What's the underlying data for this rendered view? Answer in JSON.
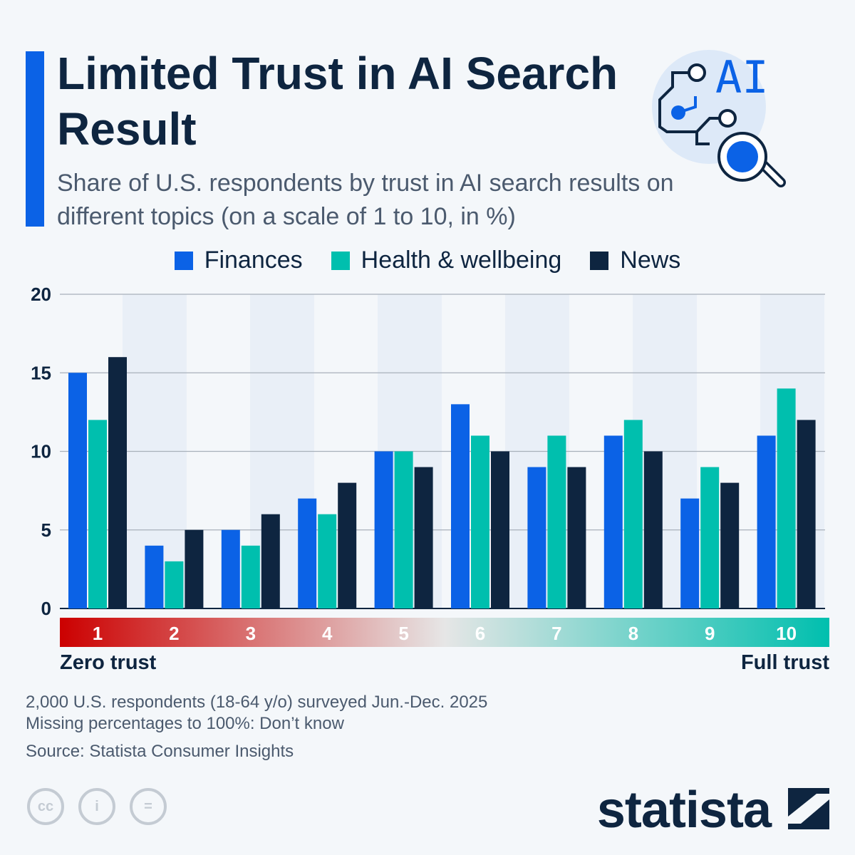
{
  "header": {
    "title": "Limited Trust in AI Search Result",
    "subtitle": "Share of U.S. respondents by trust in AI search results on different topics (on a scale of 1 to 10, in %)"
  },
  "colors": {
    "accent": "#0b62e6",
    "finances": "#0b62e6",
    "health": "#00bfae",
    "news": "#0e2540"
  },
  "chart_data": {
    "type": "bar",
    "categories": [
      "1",
      "2",
      "3",
      "4",
      "5",
      "6",
      "7",
      "8",
      "9",
      "10"
    ],
    "series": [
      {
        "name": "Finances",
        "values": [
          15,
          4,
          5,
          7,
          10,
          13,
          9,
          11,
          7,
          11
        ]
      },
      {
        "name": "Health & wellbeing",
        "values": [
          12,
          3,
          4,
          6,
          10,
          11,
          11,
          12,
          9,
          14
        ]
      },
      {
        "name": "News",
        "values": [
          16,
          5,
          6,
          8,
          9,
          10,
          9,
          10,
          8,
          12
        ]
      }
    ],
    "yticks": [
      "0",
      "5",
      "10",
      "15",
      "20"
    ],
    "ylim": [
      0,
      20
    ],
    "grid": true,
    "legend": "top-center",
    "scale_low_label": "Zero trust",
    "scale_high_label": "Full trust"
  },
  "footer": {
    "note1": "2,000 U.S. respondents (18-64 y/o) surveyed Jun.-Dec. 2025",
    "note2": "Missing percentages to 100%: Don’t know",
    "source": "Source: Statista Consumer Insights",
    "logo": "statista",
    "license_icons": [
      "cc-icon",
      "by-icon",
      "nd-icon"
    ],
    "illustration_text": "AI"
  }
}
